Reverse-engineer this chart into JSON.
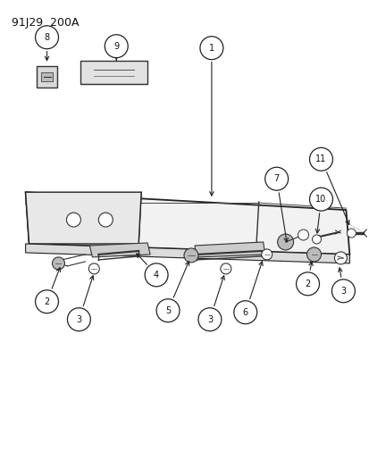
{
  "title": "91J29  200A",
  "bg_color": "#ffffff",
  "line_color": "#333333",
  "fig_width": 4.14,
  "fig_height": 5.33,
  "dpi": 100
}
